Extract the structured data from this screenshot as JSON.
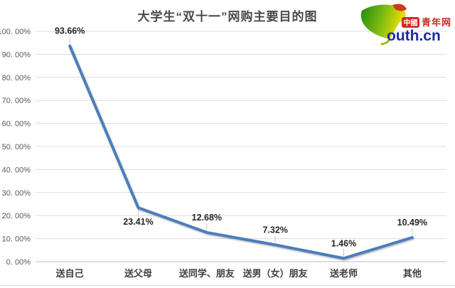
{
  "chart_data": {
    "type": "line",
    "title": "大学生“双十一”网购主要目的图",
    "categories": [
      "送自己",
      "送父母",
      "送同学、朋友",
      "送男（女）朋友",
      "送老师",
      "其他"
    ],
    "values": [
      93.66,
      23.41,
      12.68,
      7.32,
      1.46,
      10.49
    ],
    "data_labels": [
      "93.66%",
      "23.41%",
      "12.68%",
      "7.32%",
      "1.46%",
      "10.49%"
    ],
    "data_label_positions": [
      "above",
      "below",
      "above",
      "above",
      "above",
      "above"
    ],
    "xlabel": "",
    "ylabel": "",
    "ylim": [
      0,
      100
    ],
    "ytick_step": 10,
    "ytick_labels": [
      "0. 00%",
      "10. 00%",
      "20. 00%",
      "30. 00%",
      "40. 00%",
      "50. 00%",
      "60. 00%",
      "70. 00%",
      "80. 00%",
      "90. 00%",
      "100. 00%"
    ],
    "grid": true,
    "legend": "none",
    "line_color": "#4a7ebb",
    "grid_color": "#dcdcdc",
    "axis_line_color": "#bfbfbf",
    "ytick_color": "#595959",
    "xtick_color": "#3f3f3f",
    "data_label_color": "#262626",
    "title_color": "#4a4a4a"
  },
  "logo": {
    "zh_badge": "中國",
    "zh_text": "青年网",
    "en_text": "outh.cn",
    "badge_color": "#d02b20",
    "zh_text_color": "#d02b20",
    "en_text_color": "#1b2ba0",
    "leaf_green": "#2f9012",
    "leaf_yellow": "#f0e000",
    "leaf_red_tip": "#cf3a1f"
  }
}
